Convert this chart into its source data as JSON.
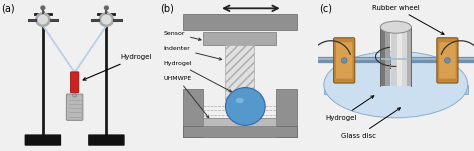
{
  "fig_width": 4.74,
  "fig_height": 1.51,
  "bg_color": "#f0f0f0",
  "panel_labels": [
    "(a)",
    "(b)",
    "(c)"
  ],
  "panel_label_fontsize": 7,
  "label_fontsize": 4.5,
  "panels": {
    "a": {
      "hydrogel_label": "Hydrogel",
      "stand_color": "#1a1a1a",
      "base_color": "#111111",
      "wire_color": "#b8d0e8",
      "hydrogel_tube_color": "#cc2222",
      "weight_color": "#b0b0b0"
    },
    "b": {
      "labels": [
        "Sensor",
        "Indenter",
        "Hydrogel",
        "UHMWPE"
      ],
      "top_plate_color": "#888888",
      "mid_plate_color": "#aaaaaa",
      "shaft_color": "#cccccc",
      "container_color": "#888888",
      "uhmwpe_color": "#bbbbbb",
      "hydrogel_color": "#5599cc",
      "arrow_color": "#222222"
    },
    "c": {
      "labels": [
        "Rubber wheel",
        "Hydrogel",
        "Glass disc"
      ],
      "disc_top_color": "#c8dff0",
      "disc_edge_color": "#a0bcd8",
      "disc_side_color": "#b8d0e8",
      "wheel_face_color": "#c8a44a",
      "wheel_rim_color": "#8a6828",
      "axle_color": "#7090b0",
      "cylinder_color_dark": "#888888",
      "cylinder_color_mid": "#c8c8c8",
      "cylinder_color_light": "#e8e8e8"
    }
  }
}
